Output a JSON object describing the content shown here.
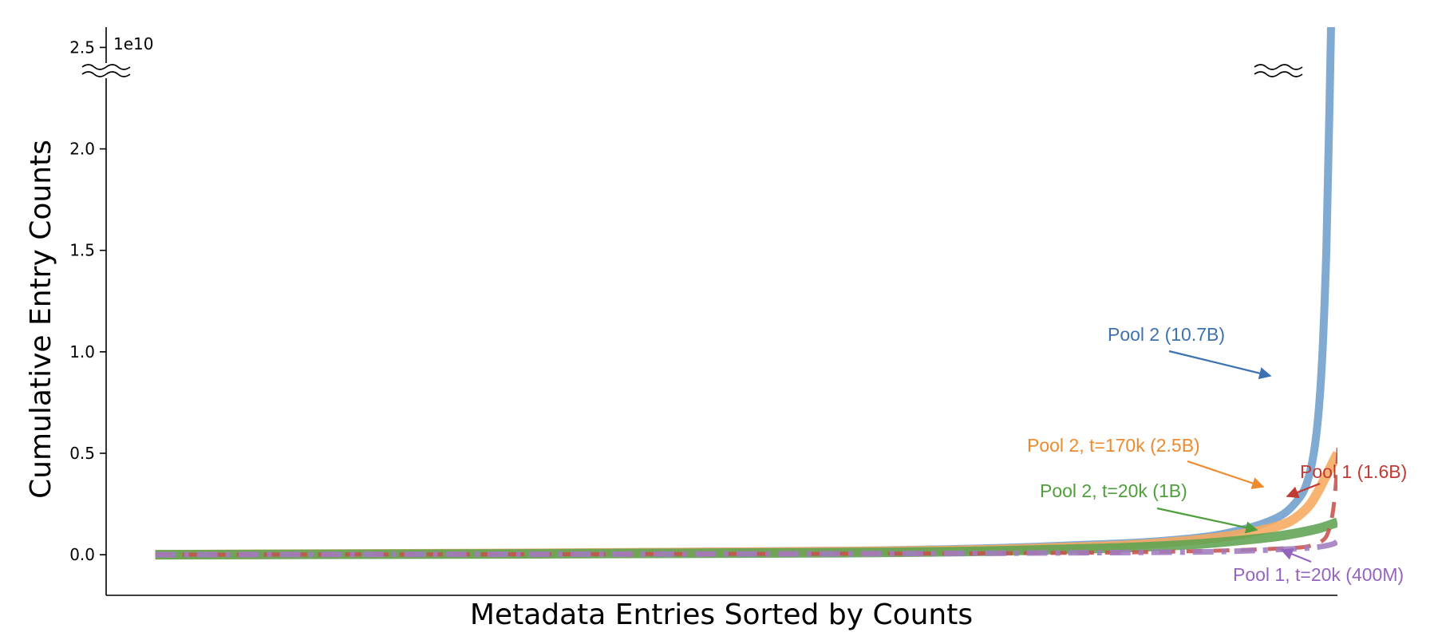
{
  "chart_data": {
    "type": "line",
    "title": "",
    "xlabel": "Metadata Entries Sorted by Counts",
    "ylabel": "Cumulative Entry Counts",
    "offset_label": "1e10",
    "xlim": [
      0,
      100
    ],
    "ylim": [
      -0.2,
      2.6
    ],
    "y_scale_factor": 10000000000.0,
    "yticks": [
      0.0,
      0.5,
      1.0,
      1.5,
      2.0,
      2.5
    ],
    "ytick_labels": [
      "0.0",
      "0.5",
      "1.0",
      "1.5",
      "2.0",
      "2.5"
    ],
    "xticks_shown": false,
    "grid": false,
    "broken_y_axis": true,
    "series": [
      {
        "key": "pool2",
        "color": "#6e9ecb",
        "dash": "solid",
        "width": 10,
        "x": [
          4,
          60,
          80,
          88,
          92,
          95,
          96.5,
          97.5,
          98.2,
          98.7,
          99.1,
          99.35,
          99.6
        ],
        "y": [
          0,
          0.02,
          0.05,
          0.08,
          0.12,
          0.18,
          0.25,
          0.35,
          0.55,
          0.9,
          1.5,
          2.2,
          3.0
        ]
      },
      {
        "key": "pool2-t170k",
        "color": "#f5a85f",
        "dash": "solid",
        "width": 12,
        "x": [
          4,
          60,
          80,
          88,
          92,
          94.5,
          96,
          97,
          97.8,
          98.5,
          99,
          99.5,
          100
        ],
        "y": [
          0,
          0.015,
          0.04,
          0.07,
          0.1,
          0.13,
          0.16,
          0.2,
          0.25,
          0.32,
          0.38,
          0.44,
          0.5
        ]
      },
      {
        "key": "pool2-t20k",
        "color": "#5fa352",
        "dash": "solid",
        "width": 12,
        "x": [
          4,
          60,
          80,
          88,
          92,
          95,
          97,
          98.5,
          100
        ],
        "y": [
          0,
          0.01,
          0.03,
          0.05,
          0.07,
          0.09,
          0.11,
          0.13,
          0.16
        ]
      },
      {
        "key": "pool1",
        "color": "#c8514c",
        "dash": "dashed",
        "width": 5,
        "x": [
          4,
          60,
          80,
          90,
          95,
          97.5,
          98.8,
          99.3,
          99.6,
          99.8,
          100,
          100.1
        ],
        "y": [
          0,
          0.005,
          0.01,
          0.02,
          0.03,
          0.04,
          0.07,
          0.12,
          0.2,
          0.3,
          0.45,
          0.57
        ]
      },
      {
        "key": "pool1-t20k",
        "color": "#a07cc0",
        "dash": "dashdot",
        "width": 7,
        "x": [
          4,
          60,
          80,
          90,
          95,
          98,
          99.5,
          100
        ],
        "y": [
          0,
          0.005,
          0.01,
          0.015,
          0.025,
          0.035,
          0.05,
          0.065
        ]
      }
    ],
    "annotations": [
      {
        "text": "Pool 2 (10.7B)",
        "color": "#3d72b0",
        "series": "pool2"
      },
      {
        "text": "Pool 2, t=170k (2.5B)",
        "color": "#ee8a2e",
        "series": "pool2-t170k"
      },
      {
        "text": "Pool 2, t=20k (1B)",
        "color": "#4f9e3c",
        "series": "pool2-t20k"
      },
      {
        "text": "Pool 1 (1.6B)",
        "color": "#c13a33",
        "series": "pool1"
      },
      {
        "text": "Pool 1, t=20k (400M)",
        "color": "#9565bd",
        "series": "pool1-t20k"
      }
    ]
  }
}
